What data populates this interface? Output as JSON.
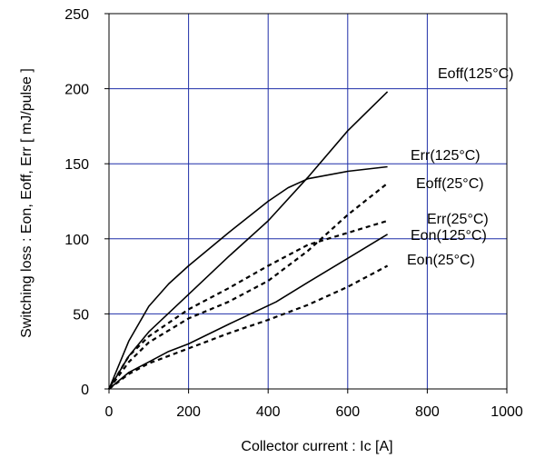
{
  "chart_data": {
    "type": "line",
    "title": "",
    "xlabel": "Collector current : Ic [A]",
    "ylabel": "Switching loss : Eon, Eoff, Err [ mJ/pulse ]",
    "xlim": [
      0,
      1000
    ],
    "ylim": [
      0,
      250
    ],
    "xticks": [
      0,
      200,
      400,
      600,
      800,
      1000
    ],
    "yticks": [
      0,
      50,
      100,
      150,
      200,
      250
    ],
    "grid": true,
    "grid_color": "#1f2fa8",
    "line_color": "#000000",
    "legend": "inline labels at right",
    "series": [
      {
        "name": "Eoff(125°C)",
        "style": "solid",
        "x": [
          0,
          50,
          100,
          200,
          300,
          400,
          500,
          600,
          700
        ],
        "y": [
          0,
          22,
          38,
          63,
          88,
          112,
          141,
          172,
          198
        ]
      },
      {
        "name": "Err(125°C)",
        "style": "solid",
        "x": [
          0,
          50,
          100,
          150,
          200,
          300,
          400,
          450,
          500,
          600,
          700
        ],
        "y": [
          0,
          32,
          55,
          70,
          82,
          104,
          125,
          134,
          140,
          145,
          148
        ]
      },
      {
        "name": "Eoff(25°C)",
        "style": "dashed",
        "x": [
          0,
          50,
          100,
          200,
          300,
          400,
          500,
          600,
          700
        ],
        "y": [
          0,
          18,
          31,
          47,
          58,
          72,
          92,
          116,
          137
        ]
      },
      {
        "name": "Err(25°C)",
        "style": "dashed",
        "x": [
          0,
          50,
          100,
          200,
          300,
          400,
          500,
          600,
          700
        ],
        "y": [
          0,
          22,
          35,
          53,
          67,
          82,
          96,
          104,
          112
        ]
      },
      {
        "name": "Eon(125°C)",
        "style": "solid",
        "x": [
          0,
          50,
          100,
          150,
          200,
          300,
          420,
          500,
          600,
          700
        ],
        "y": [
          0,
          11,
          18,
          25,
          30,
          43,
          58,
          71,
          87,
          103
        ]
      },
      {
        "name": "Eon(25°C)",
        "style": "dashed",
        "x": [
          0,
          50,
          100,
          200,
          300,
          400,
          500,
          600,
          700
        ],
        "y": [
          0,
          10,
          17,
          27,
          37,
          46,
          56,
          68,
          82
        ]
      }
    ],
    "annotations": [
      {
        "text": "Eoff(125°C)",
        "series": 0
      },
      {
        "text": "Err(125°C)",
        "series": 1
      },
      {
        "text": "Eoff(25°C)",
        "series": 2
      },
      {
        "text": "Err(25°C)",
        "series": 3
      },
      {
        "text": "Eon(125°C)",
        "series": 4
      },
      {
        "text": "Eon(25°C)",
        "series": 5
      }
    ]
  }
}
